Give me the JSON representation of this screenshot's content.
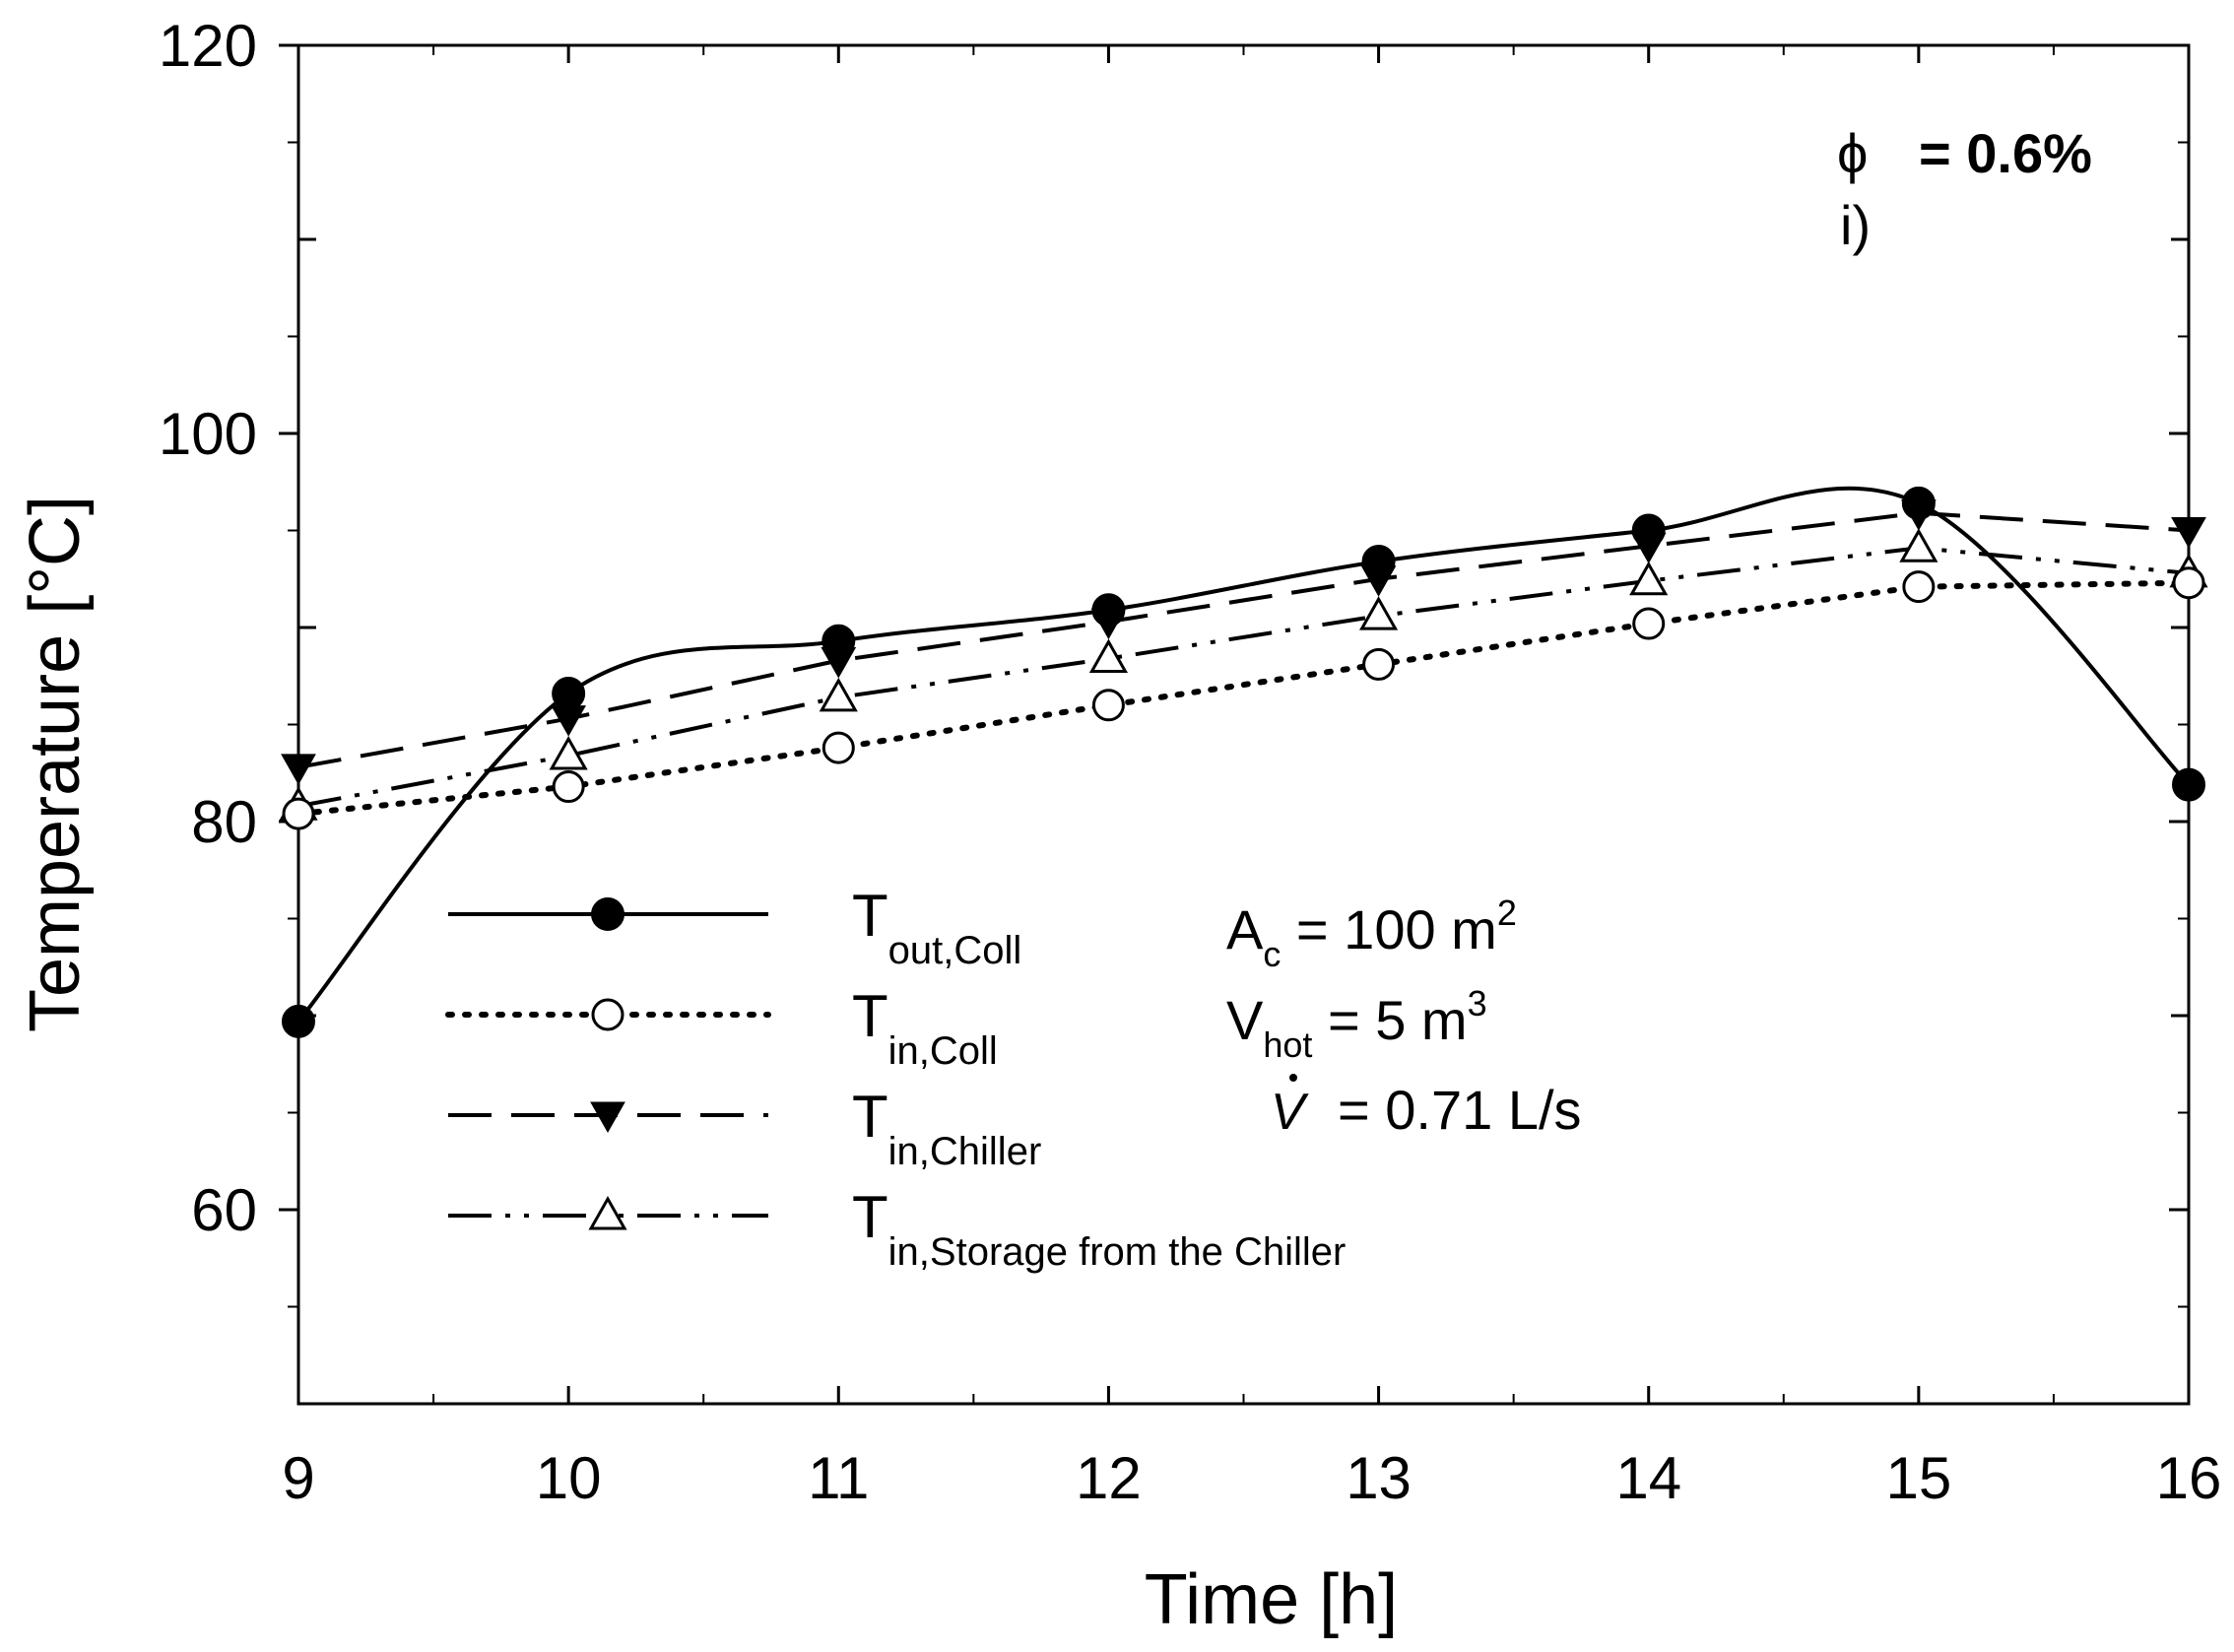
{
  "chart_data": {
    "type": "line",
    "title": "",
    "xlabel": "Time [h]",
    "ylabel": "Temperature [°C]",
    "xlim": [
      9,
      16
    ],
    "ylim": [
      50,
      120
    ],
    "x_ticks": [
      9,
      10,
      11,
      12,
      13,
      14,
      15,
      16
    ],
    "y_ticks": [
      60,
      80,
      100,
      120
    ],
    "x": [
      9,
      10,
      11,
      12,
      13,
      14,
      15,
      16
    ],
    "series": [
      {
        "name_main": "T",
        "name_sub": "out,Coll",
        "style": "solid",
        "marker": "filled-circle",
        "values": [
          69.7,
          86.6,
          89.3,
          90.9,
          93.4,
          95.0,
          96.4,
          81.9
        ]
      },
      {
        "name_main": "T",
        "name_sub": "in,Coll",
        "style": "dotted",
        "marker": "open-circle",
        "values": [
          80.4,
          81.8,
          83.8,
          86.0,
          88.1,
          90.2,
          92.1,
          92.3
        ]
      },
      {
        "name_main": "T",
        "name_sub": "in,Chiller",
        "style": "dashed",
        "marker": "filled-triangle-down",
        "values": [
          82.8,
          85.3,
          88.3,
          90.3,
          92.5,
          94.2,
          95.9,
          95.0
        ]
      },
      {
        "name_main": "T",
        "name_sub": "in,Storage from the Chiller",
        "style": "dash-dot-dot",
        "marker": "open-triangle-up",
        "values": [
          80.8,
          83.4,
          86.4,
          88.4,
          90.6,
          92.4,
          94.1,
          92.8
        ]
      }
    ],
    "annotations": {
      "phi_symbol": "ϕ",
      "phi_value": "= 0.6%",
      "panel_label": "i)",
      "ac_main": "A",
      "ac_sub": "c",
      "ac_rest": " = 100 m",
      "ac_sup": "2",
      "vhot_main": "V",
      "vhot_sub": "hot",
      "vhot_rest": " = 5 m",
      "vhot_sup": "3",
      "vflow_symbol": "V",
      "vflow_rest": "= 0.71 L/s"
    },
    "grid": false,
    "legend_position": "lower-left"
  }
}
